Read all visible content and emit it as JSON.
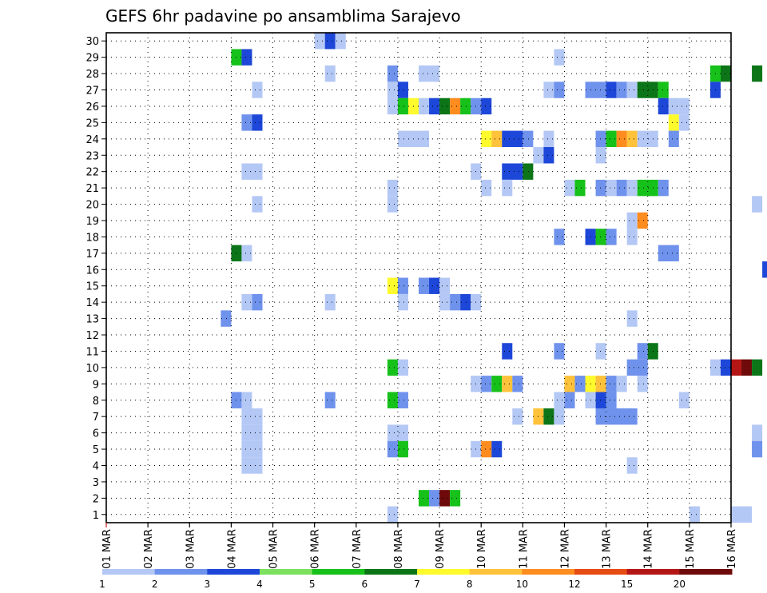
{
  "chart_data": {
    "type": "heatmap",
    "title": "GEFS 6hr padavine po ansamblima Sarajevo",
    "xlabel": "",
    "ylabel": "",
    "x_ticks": [
      "01 MAR",
      "02 MAR",
      "03 MAR",
      "04 MAR",
      "05 MAR",
      "06 MAR",
      "07 MAR",
      "08 MAR",
      "09 MAR",
      "10 MAR",
      "11 MAR",
      "12 MAR",
      "13 MAR",
      "14 MAR",
      "15 MAR",
      "16 MAR"
    ],
    "x_range_days": [
      0,
      15
    ],
    "y_ticks": [
      "1",
      "2",
      "3",
      "4",
      "5",
      "6",
      "7",
      "8",
      "9",
      "10",
      "11",
      "12",
      "13",
      "14",
      "15",
      "16",
      "17",
      "18",
      "19",
      "20",
      "21",
      "22",
      "23",
      "24",
      "25",
      "26",
      "27",
      "28",
      "29",
      "30"
    ],
    "y_range": [
      0.5,
      30.5
    ],
    "grid": true,
    "colorbar": {
      "labels": [
        "1",
        "2",
        "3",
        "4",
        "5",
        "6",
        "7",
        "8",
        "10",
        "12",
        "15",
        "20"
      ],
      "colors": [
        "#b4c8f5",
        "#6f92ec",
        "#1d47d8",
        "#7ce15e",
        "#16c11a",
        "#0c7518",
        "#fffa2c",
        "#ffc23a",
        "#ff8c1e",
        "#e64b12",
        "#b41616",
        "#6e0a0a"
      ]
    },
    "note": "cells: [ensemble_member, start_day_offset, duration_days, level_index 1-12]",
    "cells": [
      [
        30,
        5.0,
        0.25,
        1
      ],
      [
        30,
        5.25,
        0.25,
        3
      ],
      [
        30,
        5.5,
        0.25,
        1
      ],
      [
        29,
        3.0,
        0.25,
        5
      ],
      [
        29,
        3.25,
        0.25,
        3
      ],
      [
        29,
        10.75,
        0.25,
        1
      ],
      [
        28,
        5.25,
        0.25,
        1
      ],
      [
        28,
        6.75,
        0.25,
        2
      ],
      [
        28,
        7.5,
        0.5,
        1
      ],
      [
        28,
        14.5,
        0.25,
        5
      ],
      [
        28,
        14.75,
        0.25,
        6
      ],
      [
        28,
        15.5,
        0.25,
        6
      ],
      [
        27,
        3.5,
        0.25,
        1
      ],
      [
        27,
        6.75,
        0.25,
        1
      ],
      [
        27,
        7.0,
        0.25,
        3
      ],
      [
        27,
        10.5,
        0.25,
        1
      ],
      [
        27,
        10.75,
        0.25,
        2
      ],
      [
        27,
        11.5,
        0.5,
        2
      ],
      [
        27,
        12.0,
        0.25,
        3
      ],
      [
        27,
        12.25,
        0.25,
        2
      ],
      [
        27,
        12.5,
        0.25,
        1
      ],
      [
        27,
        12.75,
        0.5,
        6
      ],
      [
        27,
        13.25,
        0.25,
        5
      ],
      [
        27,
        14.5,
        0.25,
        3
      ],
      [
        26,
        6.75,
        0.25,
        1
      ],
      [
        26,
        7.0,
        0.25,
        5
      ],
      [
        26,
        7.25,
        0.25,
        7
      ],
      [
        26,
        7.5,
        0.25,
        1
      ],
      [
        26,
        7.75,
        0.25,
        3
      ],
      [
        26,
        8.0,
        0.25,
        6
      ],
      [
        26,
        8.25,
        0.25,
        9
      ],
      [
        26,
        8.5,
        0.25,
        5
      ],
      [
        26,
        8.75,
        0.25,
        2
      ],
      [
        26,
        9.0,
        0.25,
        3
      ],
      [
        26,
        13.25,
        0.25,
        3
      ],
      [
        26,
        13.5,
        0.25,
        1
      ],
      [
        26,
        13.75,
        0.25,
        1
      ],
      [
        25,
        3.25,
        0.25,
        2
      ],
      [
        25,
        3.5,
        0.25,
        3
      ],
      [
        25,
        13.5,
        0.25,
        7
      ],
      [
        25,
        13.75,
        0.25,
        1
      ],
      [
        24,
        7.0,
        0.75,
        1
      ],
      [
        24,
        9.0,
        0.25,
        7
      ],
      [
        24,
        9.25,
        0.25,
        8
      ],
      [
        24,
        9.5,
        0.5,
        3
      ],
      [
        24,
        10.0,
        0.25,
        2
      ],
      [
        24,
        10.5,
        0.25,
        1
      ],
      [
        24,
        11.75,
        0.25,
        2
      ],
      [
        24,
        12.0,
        0.25,
        5
      ],
      [
        24,
        12.25,
        0.25,
        9
      ],
      [
        24,
        12.5,
        0.25,
        8
      ],
      [
        24,
        12.75,
        0.5,
        1
      ],
      [
        24,
        13.5,
        0.25,
        2
      ],
      [
        23,
        10.25,
        0.25,
        1
      ],
      [
        23,
        10.5,
        0.25,
        3
      ],
      [
        23,
        11.75,
        0.25,
        1
      ],
      [
        22,
        3.25,
        0.5,
        1
      ],
      [
        22,
        8.75,
        0.25,
        1
      ],
      [
        22,
        9.5,
        0.5,
        3
      ],
      [
        22,
        10.0,
        0.25,
        6
      ],
      [
        21,
        6.75,
        0.25,
        1
      ],
      [
        21,
        9.0,
        0.25,
        1
      ],
      [
        21,
        9.5,
        0.25,
        1
      ],
      [
        21,
        11.0,
        0.25,
        1
      ],
      [
        21,
        11.25,
        0.25,
        5
      ],
      [
        21,
        11.75,
        0.25,
        2
      ],
      [
        21,
        12.0,
        0.25,
        1
      ],
      [
        21,
        12.25,
        0.25,
        2
      ],
      [
        21,
        12.5,
        0.25,
        1
      ],
      [
        21,
        12.75,
        0.5,
        5
      ],
      [
        21,
        13.25,
        0.25,
        2
      ],
      [
        20,
        3.5,
        0.25,
        1
      ],
      [
        20,
        6.75,
        0.25,
        1
      ],
      [
        20,
        15.5,
        0.25,
        1
      ],
      [
        19,
        12.5,
        0.25,
        1
      ],
      [
        19,
        12.75,
        0.25,
        9
      ],
      [
        18,
        10.75,
        0.25,
        2
      ],
      [
        18,
        11.5,
        0.25,
        3
      ],
      [
        18,
        11.75,
        0.25,
        5
      ],
      [
        18,
        12.0,
        0.25,
        2
      ],
      [
        18,
        12.5,
        0.25,
        1
      ],
      [
        17,
        3.0,
        0.25,
        6
      ],
      [
        17,
        3.25,
        0.25,
        1
      ],
      [
        17,
        13.25,
        0.5,
        2
      ],
      [
        16,
        15.75,
        0.25,
        3
      ],
      [
        15,
        6.75,
        0.25,
        7
      ],
      [
        15,
        7.0,
        0.25,
        2
      ],
      [
        15,
        7.5,
        0.25,
        2
      ],
      [
        15,
        7.75,
        0.25,
        3
      ],
      [
        15,
        8.0,
        0.25,
        1
      ],
      [
        14,
        3.25,
        0.25,
        1
      ],
      [
        14,
        3.5,
        0.25,
        2
      ],
      [
        14,
        5.25,
        0.25,
        1
      ],
      [
        14,
        7.0,
        0.25,
        1
      ],
      [
        14,
        8.0,
        0.25,
        1
      ],
      [
        14,
        8.25,
        0.25,
        2
      ],
      [
        14,
        8.5,
        0.25,
        3
      ],
      [
        14,
        8.75,
        0.25,
        1
      ],
      [
        13,
        2.75,
        0.25,
        2
      ],
      [
        13,
        12.5,
        0.25,
        1
      ],
      [
        11,
        9.5,
        0.25,
        3
      ],
      [
        11,
        10.75,
        0.25,
        2
      ],
      [
        11,
        11.75,
        0.25,
        1
      ],
      [
        11,
        12.75,
        0.25,
        2
      ],
      [
        11,
        13.0,
        0.25,
        6
      ],
      [
        10,
        6.75,
        0.25,
        5
      ],
      [
        10,
        7.0,
        0.25,
        1
      ],
      [
        10,
        12.5,
        0.5,
        2
      ],
      [
        10,
        14.5,
        0.25,
        1
      ],
      [
        10,
        14.75,
        0.25,
        3
      ],
      [
        10,
        15.0,
        0.25,
        11
      ],
      [
        10,
        15.25,
        0.25,
        12
      ],
      [
        10,
        15.5,
        0.25,
        6
      ],
      [
        9,
        8.75,
        0.25,
        1
      ],
      [
        9,
        9.0,
        0.25,
        2
      ],
      [
        9,
        9.25,
        0.25,
        5
      ],
      [
        9,
        9.5,
        0.25,
        8
      ],
      [
        9,
        9.75,
        0.25,
        2
      ],
      [
        9,
        11.0,
        0.25,
        8
      ],
      [
        9,
        11.25,
        0.25,
        2
      ],
      [
        9,
        11.5,
        0.25,
        7
      ],
      [
        9,
        11.75,
        0.25,
        8
      ],
      [
        9,
        12.0,
        0.25,
        2
      ],
      [
        9,
        12.25,
        0.25,
        1
      ],
      [
        9,
        12.75,
        0.25,
        1
      ],
      [
        8,
        3.0,
        0.25,
        2
      ],
      [
        8,
        3.25,
        0.25,
        1
      ],
      [
        8,
        5.25,
        0.25,
        2
      ],
      [
        8,
        6.75,
        0.25,
        5
      ],
      [
        8,
        7.0,
        0.25,
        2
      ],
      [
        8,
        10.75,
        0.25,
        1
      ],
      [
        8,
        11.0,
        0.25,
        2
      ],
      [
        8,
        11.5,
        0.25,
        1
      ],
      [
        8,
        11.75,
        0.25,
        3
      ],
      [
        8,
        12.0,
        0.25,
        2
      ],
      [
        8,
        13.75,
        0.25,
        1
      ],
      [
        7,
        3.25,
        0.5,
        1
      ],
      [
        7,
        9.75,
        0.25,
        1
      ],
      [
        7,
        10.25,
        0.25,
        8
      ],
      [
        7,
        10.5,
        0.25,
        6
      ],
      [
        7,
        10.75,
        0.25,
        1
      ],
      [
        7,
        11.75,
        0.25,
        2
      ],
      [
        7,
        12.0,
        0.75,
        2
      ],
      [
        6,
        3.25,
        0.5,
        1
      ],
      [
        6,
        6.75,
        0.5,
        1
      ],
      [
        6,
        15.5,
        0.25,
        1
      ],
      [
        5,
        3.25,
        0.5,
        1
      ],
      [
        5,
        6.75,
        0.25,
        2
      ],
      [
        5,
        7.0,
        0.25,
        5
      ],
      [
        5,
        8.75,
        0.25,
        1
      ],
      [
        5,
        9.0,
        0.25,
        9
      ],
      [
        5,
        9.25,
        0.25,
        3
      ],
      [
        5,
        15.5,
        0.25,
        2
      ],
      [
        4,
        3.25,
        0.5,
        1
      ],
      [
        4,
        12.5,
        0.25,
        1
      ],
      [
        2,
        7.5,
        0.25,
        5
      ],
      [
        2,
        7.75,
        0.25,
        2
      ],
      [
        2,
        8.0,
        0.25,
        12
      ],
      [
        2,
        8.25,
        0.25,
        5
      ],
      [
        1,
        6.75,
        0.25,
        1
      ],
      [
        1,
        14.0,
        0.25,
        1
      ],
      [
        1,
        15.0,
        0.5,
        1
      ]
    ]
  }
}
